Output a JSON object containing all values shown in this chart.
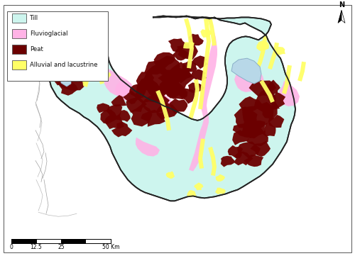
{
  "background_color": "#ffffff",
  "till_color": "#cdf5ee",
  "fluvio_color": "#ffb3e6",
  "peat_color": "#6b0000",
  "alluvial_color": "#ffff66",
  "water_color": "#b8d8e8",
  "sea_color": "#ddeeff",
  "outline_color": "#333333",
  "legend_items": [
    {
      "label": "Till",
      "color": "#cdf5ee"
    },
    {
      "label": "Fluvioglacial",
      "color": "#ffb3e6"
    },
    {
      "label": "Peat",
      "color": "#6b0000"
    },
    {
      "label": "Alluvial and lacustrine",
      "color": "#ffff66"
    }
  ],
  "figsize": [
    5.0,
    3.61
  ],
  "dpi": 100
}
